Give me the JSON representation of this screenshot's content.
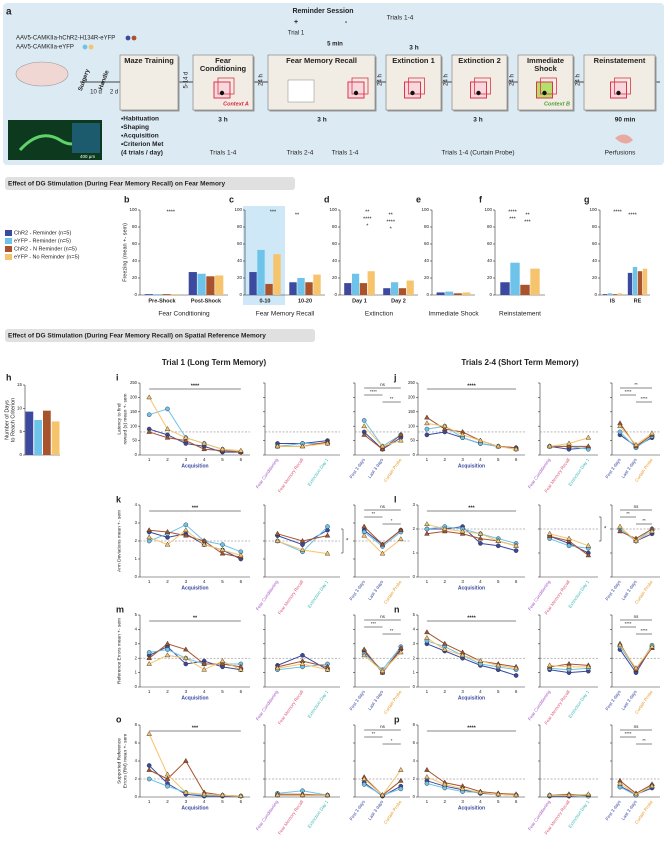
{
  "schematic": {
    "label": "a",
    "virus": [
      "AAV5-CAMKIIa-hChR2-H134R-eYFP",
      "AAV5-CAMKIIa-eYFP"
    ],
    "scale": "400 μm",
    "timeline": [
      "Surgery",
      "10 d",
      "Handle",
      "2 d",
      "5-14 d",
      "24 h",
      "24 h",
      "24 h",
      "24 h",
      "24 h"
    ],
    "boxes": [
      "Maze Training",
      "Fear Conditioning",
      "Fear Memory Recall",
      "Extinction 1",
      "Extinction 2",
      "Immediate Shock",
      "Reinstatement"
    ],
    "contexts": [
      "Context A",
      "Context B"
    ],
    "training": [
      "•Habituation",
      "•Shaping",
      "•Acquisition",
      "•Criterion Met",
      "(4 trials / day)"
    ],
    "reminder": [
      "Reminder Session",
      "+",
      "-",
      "Trial 1",
      "5 min"
    ],
    "notes": [
      "3 h",
      "Trials 1-4",
      "3 h",
      "Trials 2-4",
      "Trials 1-4",
      "Trials 1-4",
      "3 h",
      "3 h",
      "Trials 1-4 (Curtain Probe)",
      "90 min",
      "Perfusions"
    ]
  },
  "fear": {
    "header": "Effect of DG Stimulation (During Fear Memory Recall) on Fear Memory",
    "groups": [
      {
        "name": "ChR2 - Reminder (n=5)",
        "color": "#3b4a9e"
      },
      {
        "name": "eYFP - Reminder (n=5)",
        "color": "#6ec3ea"
      },
      {
        "name": "ChR2 - N Reminder (n=5)",
        "color": "#a8532c"
      },
      {
        "name": "eYFP - No Reminder (n=5)",
        "color": "#f6c46c"
      }
    ],
    "axis": {
      "ylabel": "Freezing (mean +- sem)",
      "ylim": [
        0,
        100
      ],
      "yticks": [
        0,
        20,
        40,
        60,
        80,
        100
      ]
    },
    "panels": [
      {
        "label": "b",
        "categories": [
          "Pre-Shock",
          "Post-Shock"
        ],
        "xlabel": "Fear Conditioning",
        "values": [
          [
            1,
            1,
            1,
            1
          ],
          [
            27,
            25,
            22,
            23
          ]
        ],
        "sig": [
          "****"
        ]
      },
      {
        "label": "c",
        "categories": [
          "0-10",
          "10-20"
        ],
        "xlabel": "Fear Memory Recall",
        "values": [
          [
            27,
            53,
            13,
            48
          ],
          [
            15,
            20,
            15,
            24
          ]
        ],
        "sig": [
          "***",
          "**"
        ]
      },
      {
        "label": "d",
        "categories": [
          "Day 1",
          "Day 2"
        ],
        "xlabel": "Extinction",
        "values": [
          [
            14,
            25,
            14,
            28
          ],
          [
            8,
            15,
            8,
            17
          ]
        ],
        "sig": [
          "**",
          "**",
          "****",
          "****",
          "*",
          "*"
        ]
      },
      {
        "label": "e",
        "categories": [
          null
        ],
        "xlabel": "Immediate Shock",
        "values": [
          [
            3,
            4,
            2,
            3
          ]
        ],
        "sig": []
      },
      {
        "label": "f",
        "categories": [
          null
        ],
        "xlabel": "Reinstatement",
        "values": [
          [
            15,
            38,
            12,
            31
          ]
        ],
        "sig": [
          "****",
          "**",
          "***",
          "***"
        ]
      },
      {
        "label": "g",
        "categories": [
          "IS",
          "RE"
        ],
        "xlabel": null,
        "values": [
          [
            1,
            2,
            1,
            2
          ],
          [
            26,
            33,
            28,
            31
          ]
        ],
        "sig": [
          "****",
          "****"
        ]
      }
    ]
  },
  "spatial": {
    "header": "Effect of DG Stimulation (During Fear Memory Recall) on Spatial Reference Memory",
    "trial1": "Trial 1 (Long Term Memory)",
    "trials24": "Trials 2-4 (Short Term Memory)",
    "h": {
      "label": "h",
      "ylabel": [
        "Number of Days",
        "to Reach Criterion"
      ],
      "ylim": [
        0,
        15
      ],
      "yticks": [
        0,
        5,
        10,
        15
      ],
      "values": [
        9.3,
        7.5,
        9.5,
        7.2
      ]
    },
    "acq": "Acquisition",
    "days": [
      1,
      2,
      3,
      4,
      5,
      6
    ],
    "probe": [
      "Fear Conditioning",
      "Fear Memory Recall",
      "Extinction Day 1"
    ],
    "summary": [
      "First 3 days",
      "Last 3 days",
      "Curtain Probe"
    ],
    "panels": [
      {
        "label": "i",
        "ylabel": [
          "Latency to find",
          "reward (s) mean +- sem"
        ],
        "ylim": [
          0,
          250
        ],
        "yticks": [
          0,
          50,
          100,
          150,
          200,
          250
        ],
        "ref": 80,
        "acq_sig": "****",
        "sum_sig": [
          "ns",
          "****",
          "**"
        ],
        "series": [
          [
            90,
            70,
            40,
            30,
            10,
            10,
            40,
            40,
            50,
            80,
            20,
            60
          ],
          [
            140,
            160,
            60,
            40,
            20,
            10,
            30,
            40,
            40,
            120,
            30,
            70
          ],
          [
            80,
            60,
            50,
            20,
            15,
            10,
            30,
            30,
            45,
            70,
            20,
            70
          ],
          [
            200,
            90,
            60,
            40,
            20,
            15,
            30,
            30,
            40,
            100,
            30,
            50
          ]
        ]
      },
      {
        "label": "j",
        "ylim": [
          0,
          250
        ],
        "yticks": [
          0,
          50,
          100,
          150,
          200,
          250
        ],
        "ref": 80,
        "acq_sig": "****",
        "sum_sig": [
          "**",
          "****",
          "****"
        ],
        "series": [
          [
            70,
            80,
            60,
            40,
            30,
            25,
            30,
            20,
            25,
            70,
            30,
            60
          ],
          [
            90,
            100,
            60,
            40,
            30,
            20,
            30,
            30,
            20,
            80,
            25,
            65
          ],
          [
            130,
            90,
            80,
            50,
            30,
            25,
            30,
            30,
            30,
            110,
            30,
            70
          ],
          [
            110,
            100,
            70,
            50,
            30,
            20,
            30,
            40,
            60,
            100,
            35,
            75
          ]
        ]
      },
      {
        "label": "k",
        "ylabel": [
          "Arm Deviations mean +- sem"
        ],
        "ylim": [
          0,
          4
        ],
        "yticks": [
          0,
          1,
          2,
          3,
          4
        ],
        "ref": 2,
        "acq_sig": "***",
        "sum_sig": [
          "ns",
          "**",
          "*"
        ],
        "probe_sig": "*",
        "series": [
          [
            2.5,
            2.2,
            2.4,
            1.8,
            1.5,
            1.0,
            2.3,
            1.8,
            2.6,
            2.6,
            1.8,
            2.6
          ],
          [
            2.0,
            2.4,
            2.9,
            2.0,
            1.8,
            1.4,
            2.0,
            1.4,
            2.8,
            2.5,
            1.7,
            2.5
          ],
          [
            2.6,
            2.5,
            2.3,
            2.0,
            1.3,
            1.1,
            2.4,
            2.0,
            2.3,
            2.8,
            1.8,
            2.6
          ],
          [
            2.2,
            1.8,
            2.6,
            1.8,
            1.5,
            1.2,
            2.0,
            1.5,
            1.3,
            2.3,
            1.3,
            2.1
          ]
        ]
      },
      {
        "label": "l",
        "ylim": [
          0,
          3
        ],
        "yticks": [
          0,
          1,
          2,
          3
        ],
        "ref": 2,
        "acq_sig": "***",
        "sum_sig": [
          "ns",
          "**",
          "**"
        ],
        "probe_sig": "*",
        "series": [
          [
            2.0,
            2.0,
            2.1,
            1.4,
            1.3,
            1.1,
            1.7,
            1.4,
            1.0,
            2.0,
            1.5,
            1.8
          ],
          [
            2.0,
            2.1,
            2.0,
            1.8,
            1.6,
            1.4,
            1.6,
            1.3,
            1.2,
            2.0,
            1.5,
            2.0
          ],
          [
            1.8,
            1.9,
            1.8,
            1.6,
            1.5,
            1.3,
            1.7,
            1.5,
            0.9,
            1.9,
            1.6,
            2.0
          ],
          [
            2.2,
            2.0,
            1.9,
            1.8,
            1.5,
            1.3,
            1.8,
            1.6,
            1.3,
            2.1,
            1.5,
            1.9
          ]
        ]
      },
      {
        "label": "m",
        "ylabel": [
          "Reference Errors mean +- sem"
        ],
        "ylim": [
          0,
          5
        ],
        "yticks": [
          0,
          1,
          2,
          3,
          4,
          5
        ],
        "ref": 2,
        "acq_sig": "**",
        "sum_sig": [
          "ns",
          "***",
          "**"
        ],
        "series": [
          [
            2.2,
            2.8,
            1.6,
            1.8,
            1.4,
            1.2,
            1.5,
            2.2,
            1.2,
            2.5,
            1.0,
            2.6
          ],
          [
            2.4,
            2.6,
            2.0,
            1.6,
            1.6,
            1.6,
            1.2,
            1.4,
            1.6,
            2.3,
            1.2,
            2.8
          ],
          [
            2.0,
            3.0,
            2.6,
            1.6,
            1.6,
            1.4,
            1.4,
            1.8,
            1.4,
            2.6,
            1.0,
            2.7
          ],
          [
            1.6,
            2.2,
            2.0,
            1.2,
            1.8,
            1.2,
            1.3,
            1.6,
            1.2,
            2.2,
            1.1,
            2.4
          ]
        ]
      },
      {
        "label": "n",
        "ylim": [
          0,
          5
        ],
        "yticks": [
          0,
          1,
          2,
          3,
          4,
          5
        ],
        "ref": 2,
        "acq_sig": "****",
        "sum_sig": [
          "ns",
          "****",
          "****"
        ],
        "series": [
          [
            3.0,
            2.5,
            2.0,
            1.5,
            1.2,
            0.8,
            1.2,
            1.0,
            1.1,
            2.6,
            1.0,
            2.8
          ],
          [
            3.2,
            2.8,
            2.2,
            1.6,
            1.4,
            1.2,
            1.3,
            1.2,
            1.3,
            2.8,
            1.2,
            2.9
          ],
          [
            3.8,
            3.0,
            2.4,
            1.8,
            1.6,
            1.4,
            1.4,
            1.6,
            1.5,
            3.0,
            1.2,
            2.7
          ],
          [
            3.4,
            2.6,
            2.2,
            1.8,
            1.5,
            1.3,
            1.5,
            1.4,
            1.4,
            2.9,
            1.3,
            2.8
          ]
        ]
      },
      {
        "label": "o",
        "ylabel": [
          "Supported Reference",
          "Errors (RM) mean +- sem"
        ],
        "ylim": [
          0,
          8
        ],
        "yticks": [
          0,
          2,
          4,
          6,
          8
        ],
        "ref": 2,
        "acq_sig": "***",
        "sum_sig": [
          "ns",
          "**",
          "*"
        ],
        "series": [
          [
            3.5,
            1.5,
            0.3,
            0.1,
            0.1,
            0.1,
            0.2,
            0.2,
            0.2,
            1.6,
            0.1,
            1.2
          ],
          [
            2.0,
            1.2,
            0.5,
            0.2,
            0.2,
            0.1,
            0.4,
            0.7,
            0.2,
            1.4,
            0.2,
            0.9
          ],
          [
            3.0,
            2.0,
            4.0,
            0.5,
            0.2,
            0.1,
            0.3,
            0.3,
            0.2,
            2.2,
            0.2,
            1.8
          ],
          [
            7.0,
            2.5,
            0.5,
            0.3,
            0.2,
            0.1,
            0.2,
            0.2,
            0.2,
            2.0,
            0.2,
            3.0
          ]
        ]
      },
      {
        "label": "p",
        "ylim": [
          0,
          8
        ],
        "yticks": [
          0,
          2,
          4,
          6,
          8
        ],
        "ref": 2,
        "acq_sig": "****",
        "sum_sig": [
          "ns",
          "****",
          "**"
        ],
        "series": [
          [
            1.8,
            1.2,
            0.8,
            0.4,
            0.3,
            0.2,
            0.1,
            0.1,
            0.2,
            1.2,
            0.3,
            1.0
          ],
          [
            1.5,
            1.0,
            0.6,
            0.5,
            0.3,
            0.2,
            0.2,
            0.2,
            0.1,
            1.1,
            0.2,
            1.3
          ],
          [
            3.0,
            1.6,
            1.2,
            0.6,
            0.4,
            0.3,
            0.2,
            0.3,
            0.2,
            1.8,
            0.4,
            1.4
          ],
          [
            2.2,
            1.4,
            0.9,
            0.5,
            0.3,
            0.2,
            0.2,
            0.2,
            0.3,
            1.5,
            0.3,
            1.2
          ]
        ]
      }
    ]
  }
}
